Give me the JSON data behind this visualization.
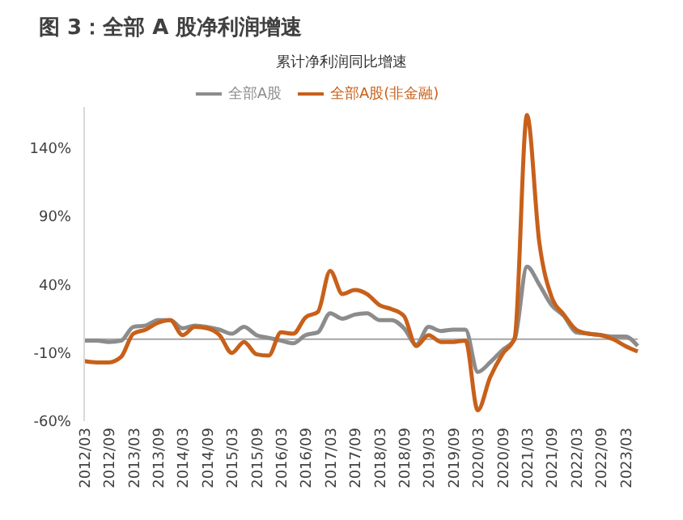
{
  "chart_data": {
    "type": "line",
    "title": "图 3：全部 A 股净利润增速",
    "subtitle": "累计净利润同比增速",
    "categories": [
      "2012/03",
      null,
      "2012/09",
      null,
      "2013/03",
      null,
      "2013/09",
      null,
      "2014/03",
      null,
      "2014/09",
      null,
      "2015/03",
      null,
      "2015/09",
      null,
      "2016/03",
      null,
      "2016/09",
      null,
      "2017/03",
      null,
      "2017/09",
      null,
      "2018/03",
      null,
      "2018/09",
      null,
      "2019/03",
      null,
      "2019/09",
      null,
      "2020/03",
      null,
      "2020/09",
      null,
      "2021/03",
      null,
      "2021/09",
      null,
      "2022/03",
      null,
      "2022/09",
      null,
      "2023/03",
      null
    ],
    "series": [
      {
        "name": "全部A股",
        "color": "#8c8c8c",
        "values": [
          -1,
          -1,
          -2,
          -1,
          9,
          10,
          14,
          14,
          8,
          10,
          9,
          7,
          4,
          9,
          3,
          1,
          -1,
          -3,
          3,
          5,
          19,
          15,
          18,
          19,
          14,
          14,
          8,
          -4,
          9,
          6,
          7,
          7,
          -24,
          -17,
          -8,
          0,
          53,
          40,
          25,
          17,
          5,
          4,
          3,
          2,
          2,
          -5
        ]
      },
      {
        "name": "全部A股(非金融)",
        "color": "#c8601a",
        "values": [
          -16,
          -17,
          -17,
          -13,
          4,
          7,
          12,
          14,
          3,
          9,
          8,
          3,
          -10,
          -2,
          -11,
          -12,
          5,
          4,
          16,
          20,
          50,
          33,
          36,
          33,
          25,
          22,
          17,
          -5,
          3,
          -2,
          -2,
          -1,
          -52,
          -28,
          -11,
          1,
          164,
          71,
          31,
          18,
          7,
          4,
          3,
          0,
          -5,
          -9
        ]
      }
    ],
    "ylim": [
      -60,
      170
    ],
    "yticks": [
      {
        "value": -60,
        "label": "-60%"
      },
      {
        "value": -10,
        "label": "-10%"
      },
      {
        "value": 40,
        "label": "40%"
      },
      {
        "value": 90,
        "label": "90%"
      },
      {
        "value": 140,
        "label": "140%"
      }
    ],
    "ref_lines": [
      {
        "axis": "y",
        "value": 0,
        "color": "#a6a6a6"
      }
    ],
    "legend": "top",
    "grid": false,
    "marker": "none",
    "line_style": "solid"
  }
}
